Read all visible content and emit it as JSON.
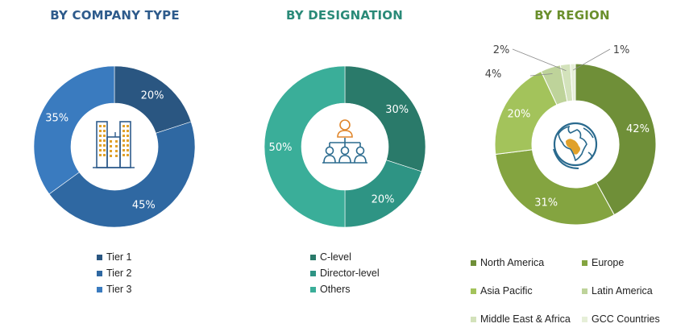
{
  "colors": {
    "company_title": "#2e5b8c",
    "designation_title": "#2a8a78",
    "region_title": "#6a8f2c"
  },
  "chart_data": [
    {
      "type": "pie",
      "title": "BY COMPANY TYPE",
      "center_icon": "buildings-icon",
      "categories": [
        "Tier 1",
        "Tier 2",
        "Tier 3"
      ],
      "values": [
        20,
        45,
        35
      ],
      "labels": [
        "20%",
        "45%",
        "35%"
      ],
      "colors": [
        "#2a5681",
        "#2f68a2",
        "#3a7bbf"
      ],
      "legend_position": "bottom"
    },
    {
      "type": "pie",
      "title": "BY DESIGNATION",
      "center_icon": "org-chart-people-icon",
      "categories": [
        "C-level",
        "Director-level",
        "Others"
      ],
      "values": [
        30,
        20,
        50
      ],
      "labels": [
        "30%",
        "20%",
        "50%"
      ],
      "colors": [
        "#2a7a6a",
        "#2e9484",
        "#3aae99"
      ],
      "legend_position": "bottom"
    },
    {
      "type": "pie",
      "title": "BY REGION",
      "center_icon": "globe-africa-icon",
      "categories": [
        "North America",
        "Europe",
        "Asia Pacific",
        "Latin America",
        "Middle East & Africa",
        "GCC Countries"
      ],
      "values": [
        42,
        31,
        20,
        4,
        2,
        1
      ],
      "labels": [
        "42%",
        "31%",
        "20%",
        "4%",
        "2%",
        "1%"
      ],
      "colors": [
        "#6f8f38",
        "#84a440",
        "#a3c35b",
        "#bed39a",
        "#d3e2bb",
        "#e6efd8"
      ],
      "legend_position": "bottom"
    }
  ]
}
